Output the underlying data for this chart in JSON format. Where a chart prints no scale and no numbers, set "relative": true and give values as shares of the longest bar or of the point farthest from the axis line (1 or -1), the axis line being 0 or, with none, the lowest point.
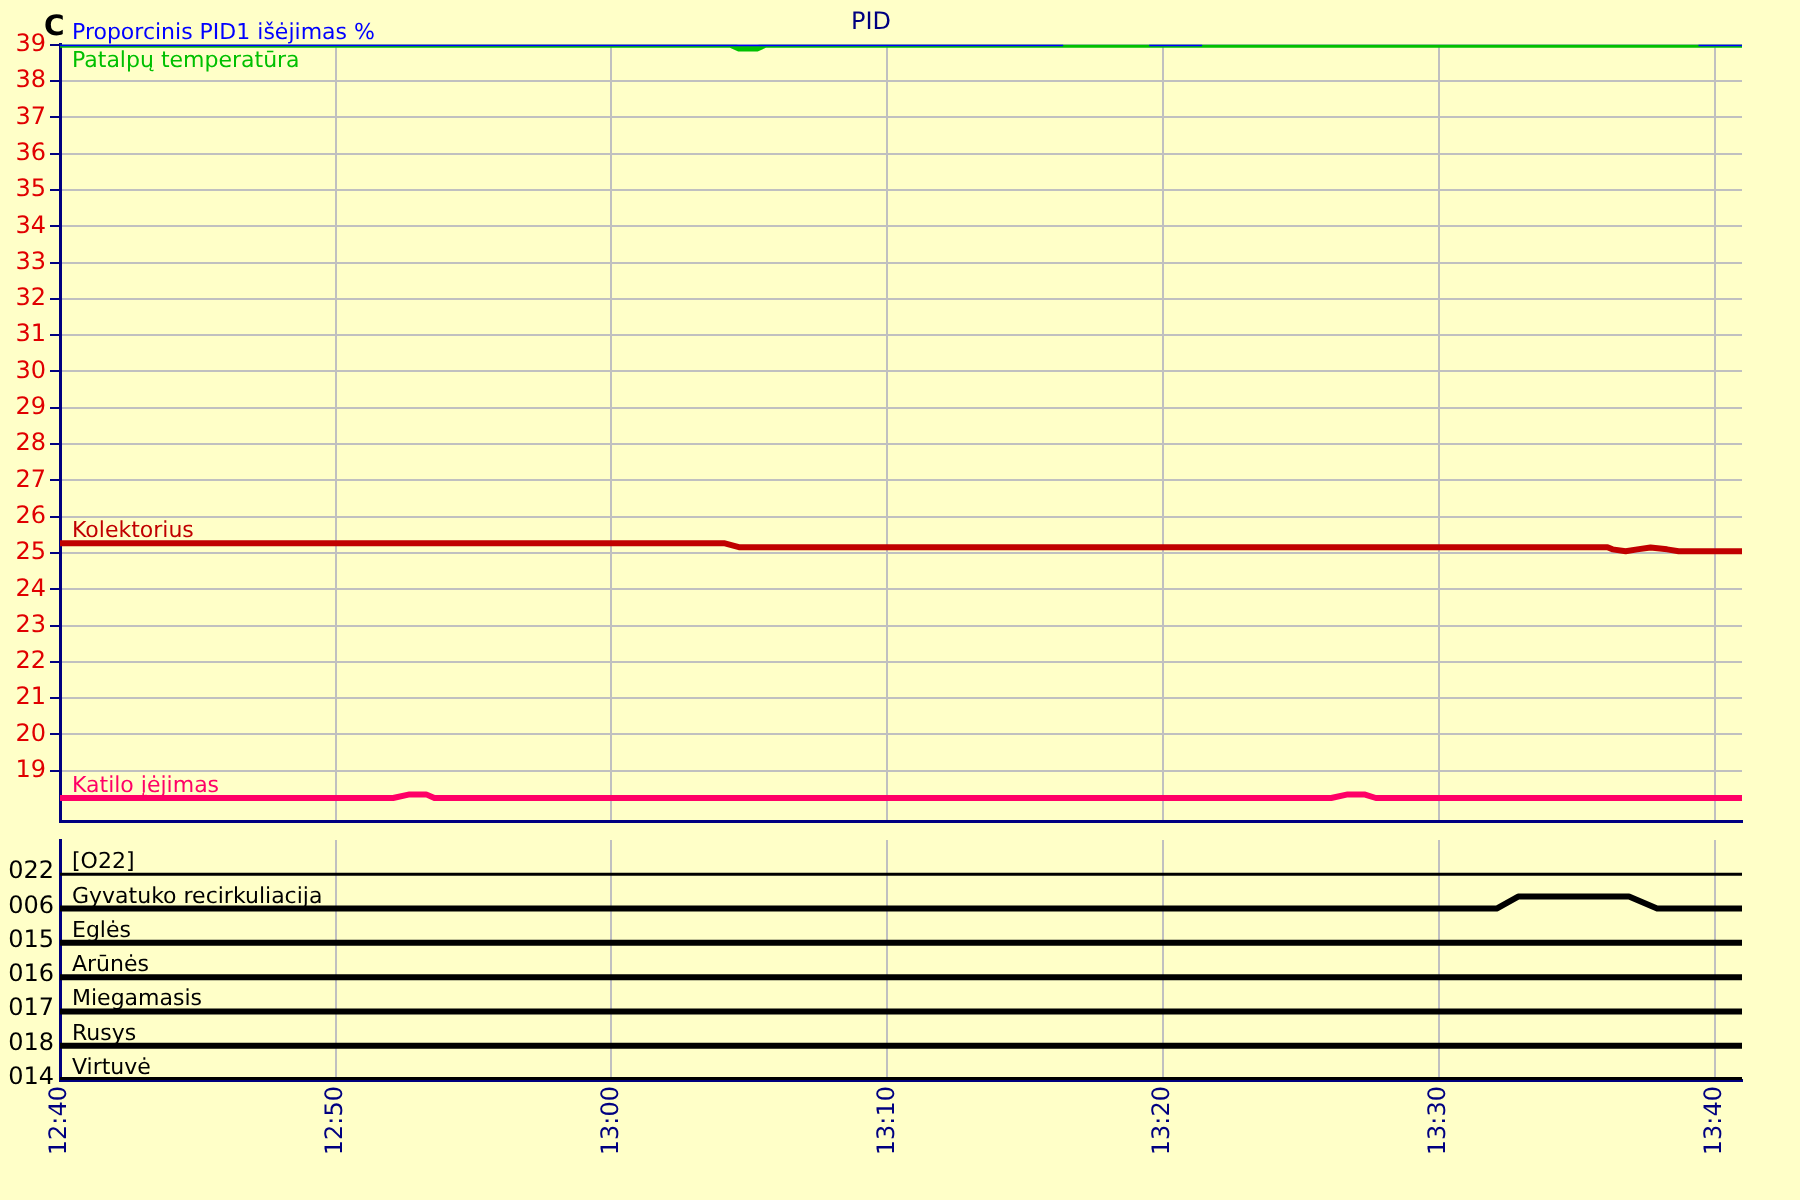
{
  "chart_data": [
    {
      "type": "line",
      "title": "PID",
      "ylabel": "C",
      "grid": true,
      "tick_labels": "y",
      "xlim": [
        12.6667,
        13.6833
      ],
      "xticks": [
        {
          "value": 12.6667,
          "label": null
        },
        {
          "value": 12.8333,
          "label": null
        },
        {
          "value": 13,
          "label": null
        },
        {
          "value": 13.1667,
          "label": null
        },
        {
          "value": 13.3333,
          "label": null
        },
        {
          "value": 13.5,
          "label": null
        },
        {
          "value": 13.6667,
          "label": null
        }
      ],
      "ylim": [
        17.6,
        39
      ],
      "yticks": [
        19,
        20,
        21,
        22,
        23,
        24,
        25,
        26,
        27,
        28,
        29,
        30,
        31,
        32,
        33,
        34,
        35,
        36,
        37,
        38,
        39
      ],
      "series": [
        {
          "name": "Proporcinis PID1 išėjimas %",
          "color": "#0000ff",
          "x": [
            12.6667,
            13.273,
            13.274,
            13.325,
            13.357,
            13.358,
            13.657,
            13.6833
          ],
          "values": [
            39,
            39,
            null,
            39,
            39,
            null,
            39,
            39
          ]
        },
        {
          "name": "Patalpų temperatūra",
          "color": "#00c000",
          "x": [
            12.6667,
            13.072,
            13.077,
            13.088,
            13.093,
            13.6833
          ],
          "values": [
            39,
            39,
            38.9,
            38.9,
            39,
            39
          ]
        },
        {
          "name": "Kolektorius",
          "color": "#c00000",
          "x": [
            12.6667,
            13.068,
            13.077,
            13.602,
            13.605,
            13.613,
            13.62,
            13.628,
            13.638,
            13.645,
            13.6833
          ],
          "values": [
            25.27,
            25.27,
            25.16,
            25.16,
            25.1,
            25.05,
            25.1,
            25.15,
            25.1,
            25.05,
            25.05
          ]
        },
        {
          "name": "Katilo įėjimas",
          "color": "#ff0066",
          "x": [
            12.6667,
            12.868,
            12.878,
            12.888,
            12.893,
            13.435,
            13.445,
            13.455,
            13.462,
            13.6833
          ],
          "values": [
            18.25,
            18.25,
            18.35,
            18.35,
            18.25,
            18.25,
            18.35,
            18.35,
            18.25,
            18.25
          ]
        }
      ]
    },
    {
      "type": "line",
      "grid": "x",
      "relative": true,
      "xlim": [
        12.6667,
        13.6833
      ],
      "xticks": [
        {
          "value": 12.6667,
          "label": "12:40"
        },
        {
          "value": 12.8333,
          "label": "12:50"
        },
        {
          "value": 13,
          "label": "13:00"
        },
        {
          "value": 13.1667,
          "label": "13:10"
        },
        {
          "value": 13.3333,
          "label": "13:20"
        },
        {
          "value": 13.5,
          "label": "13:30"
        },
        {
          "value": 13.6667,
          "label": "13:40"
        }
      ],
      "annotations": [
        "022",
        "006",
        "015",
        "016",
        "017",
        "018",
        "014"
      ],
      "series": [
        {
          "name": "[O22]",
          "color": "#000000",
          "x": [
            12.6667,
            13.6833
          ],
          "values": [
            1,
            1
          ]
        },
        {
          "name": "Gyvatuko recirkuliacija",
          "color": "#000000",
          "x": [
            12.6667,
            13.535,
            13.548,
            13.615,
            13.632,
            13.6833
          ],
          "values": [
            0.8333,
            0.8333,
            0.8917,
            0.8917,
            0.8333,
            0.8333
          ]
        },
        {
          "name": "Eglės",
          "color": "#000000",
          "x": [
            12.6667,
            13.6833
          ],
          "values": [
            0.6667,
            0.6667
          ]
        },
        {
          "name": "Arūnės",
          "color": "#000000",
          "x": [
            12.6667,
            13.6833
          ],
          "values": [
            0.5,
            0.5
          ]
        },
        {
          "name": "Miegamasis",
          "color": "#000000",
          "x": [
            12.6667,
            13.6833
          ],
          "values": [
            0.3333,
            0.3333
          ]
        },
        {
          "name": "Rusys",
          "color": "#000000",
          "x": [
            12.6667,
            13.6833
          ],
          "values": [
            0.1667,
            0.1667
          ]
        },
        {
          "name": "Virtuvė",
          "color": "#000000",
          "x": [
            12.6667,
            13.6833
          ],
          "values": [
            0,
            0
          ]
        }
      ]
    }
  ]
}
